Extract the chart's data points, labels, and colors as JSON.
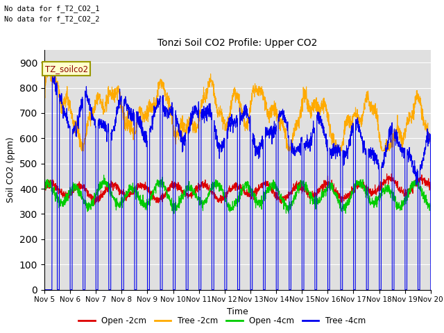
{
  "title": "Tonzi Soil CO2 Profile: Upper CO2",
  "ylabel": "Soil CO2 (ppm)",
  "xlabel": "Time",
  "annotation1": "No data for f_T2_CO2_1",
  "annotation2": "No data for f_T2_CO2_2",
  "legend_label": "TZ_soilco2",
  "ylim": [
    0,
    950
  ],
  "yticks": [
    0,
    100,
    200,
    300,
    400,
    500,
    600,
    700,
    800,
    900
  ],
  "xtick_labels": [
    "Nov 5",
    "Nov 6",
    "Nov 7",
    "Nov 8",
    "Nov 9",
    "Nov 10",
    "Nov 11",
    "Nov 12",
    "Nov 13",
    "Nov 14",
    "Nov 15",
    "Nov 16",
    "Nov 17",
    "Nov 18",
    "Nov 19",
    "Nov 20"
  ],
  "colors": {
    "open_2cm": "#dd0000",
    "tree_2cm": "#ffaa00",
    "open_4cm": "#00cc00",
    "tree_4cm": "#0000ee"
  },
  "legend_entries": [
    "Open -2cm",
    "Tree -2cm",
    "Open -4cm",
    "Tree -4cm"
  ],
  "background_color": "#e0e0e0",
  "grid_color": "#ffffff",
  "n_days": 15,
  "n_points": 2160
}
